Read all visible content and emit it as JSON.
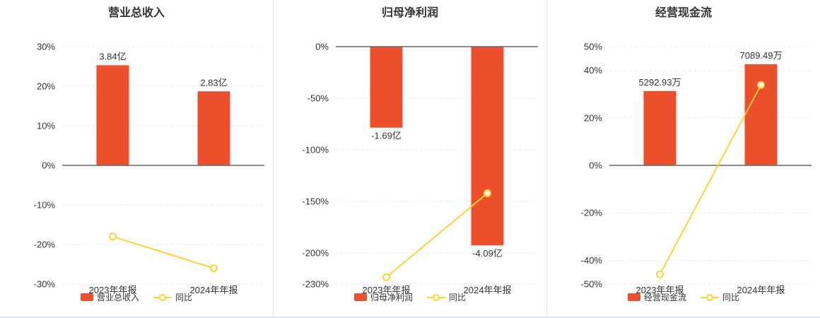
{
  "colors": {
    "bar": "#ec4f2c",
    "line": "#ffd231",
    "axis": "#666666",
    "grid": "#ebebeb",
    "text": "#333333",
    "divider": "#e5e5e5",
    "bottom_border": "#d3e6f8"
  },
  "legend_line_label": "同比",
  "chart_data": [
    {
      "type": "bar+line",
      "title": "营业总收入",
      "categories": [
        "2023年年报",
        "2024年年报"
      ],
      "bars": {
        "name": "营业总收入",
        "values_pct": [
          25.3,
          18.7
        ],
        "value_labels": [
          "3.84亿",
          "2.83亿"
        ]
      },
      "line": {
        "name": "同比",
        "values_pct": [
          -18.0,
          -26.0
        ]
      },
      "ylim": [
        -30,
        30
      ],
      "yticks": [
        30,
        20,
        10,
        0,
        -10,
        -20,
        -30
      ],
      "ytick_labels": [
        "30%",
        "20%",
        "10%",
        "0%",
        "-10%",
        "-20%",
        "-30%"
      ],
      "grid": true,
      "legend_position": "bottom"
    },
    {
      "type": "bar+line",
      "title": "归母净利润",
      "categories": [
        "2023年年报",
        "2024年年报"
      ],
      "bars": {
        "name": "归母净利润",
        "values_pct": [
          -78.5,
          -192.5
        ],
        "value_labels": [
          "-1.69亿",
          "-4.09亿"
        ]
      },
      "line": {
        "name": "同比",
        "values_pct": [
          -223.4,
          -142.0
        ]
      },
      "ylim": [
        -230,
        0
      ],
      "yticks": [
        0,
        -50,
        -100,
        -150,
        -200,
        -230
      ],
      "ytick_labels": [
        "0%",
        "-50%",
        "-100%",
        "-150%",
        "-200%",
        "-230%"
      ],
      "grid": true,
      "legend_position": "bottom"
    },
    {
      "type": "bar+line",
      "title": "经营现金流",
      "categories": [
        "2023年年报",
        "2024年年报"
      ],
      "bars": {
        "name": "经营现金流",
        "values_pct": [
          31.3,
          42.6
        ],
        "value_labels": [
          "5292.93万",
          "7089.49万"
        ]
      },
      "line": {
        "name": "同比",
        "values_pct": [
          -45.9,
          33.9
        ]
      },
      "ylim": [
        -50,
        50
      ],
      "yticks": [
        50,
        40,
        20,
        0,
        -20,
        -40,
        -50
      ],
      "ytick_labels": [
        "50%",
        "40%",
        "20%",
        "0%",
        "-20%",
        "-40%",
        "-50%"
      ],
      "grid": true,
      "legend_position": "bottom"
    }
  ]
}
